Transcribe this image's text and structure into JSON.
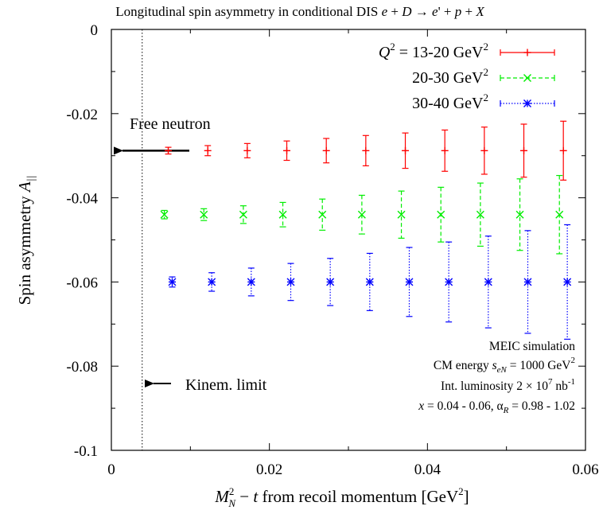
{
  "chart_data": {
    "type": "scatter",
    "title": "Longitudinal spin asymmetry in conditional DIS  e + D → e' + p + X",
    "xlabel": "M²_N − t  from recoil momentum  [GeV²]",
    "ylabel": "Spin asymmetry A_||",
    "xlim": [
      0,
      0.06
    ],
    "ylim": [
      -0.1,
      0
    ],
    "x_ticks": [
      "0",
      "0.02",
      "0.04",
      "0.06"
    ],
    "y_ticks": [
      "0",
      "-0.02",
      "-0.04",
      "-0.06",
      "-0.08",
      "-0.1"
    ],
    "grid": false,
    "legend_position": "top-right",
    "series": [
      {
        "name": "Q² = 13-20 GeV²",
        "color": "#ff0000",
        "marker": "plus",
        "line_style": "solid",
        "x": [
          0.0072,
          0.0122,
          0.0172,
          0.0222,
          0.0272,
          0.0322,
          0.0372,
          0.0422,
          0.0472,
          0.0522,
          0.0572
        ],
        "y": [
          -0.0288,
          -0.0288,
          -0.0288,
          -0.0288,
          -0.0288,
          -0.0288,
          -0.0288,
          -0.0288,
          -0.0288,
          -0.0288,
          -0.0288
        ],
        "yerr": [
          0.0008,
          0.0012,
          0.0017,
          0.0023,
          0.0029,
          0.0036,
          0.0042,
          0.0049,
          0.0056,
          0.0063,
          0.007
        ]
      },
      {
        "name": "20-30 GeV²",
        "color": "#00ee00",
        "marker": "cross",
        "line_style": "dashed",
        "x": [
          0.0067,
          0.0117,
          0.0167,
          0.0217,
          0.0267,
          0.0317,
          0.0367,
          0.0417,
          0.0467,
          0.0517,
          0.0567
        ],
        "y": [
          -0.044,
          -0.044,
          -0.044,
          -0.044,
          -0.044,
          -0.044,
          -0.044,
          -0.044,
          -0.044,
          -0.044,
          -0.044
        ],
        "yerr": [
          0.001,
          0.0014,
          0.0021,
          0.0029,
          0.0037,
          0.0046,
          0.0056,
          0.0065,
          0.0075,
          0.0085,
          0.0093
        ]
      },
      {
        "name": "30-40 GeV²",
        "color": "#0000ff",
        "marker": "star",
        "line_style": "dotted",
        "x": [
          0.0077,
          0.0127,
          0.0177,
          0.0227,
          0.0277,
          0.0327,
          0.0377,
          0.0427,
          0.0477,
          0.0527,
          0.0577
        ],
        "y": [
          -0.06,
          -0.06,
          -0.06,
          -0.06,
          -0.06,
          -0.06,
          -0.06,
          -0.06,
          -0.06,
          -0.06,
          -0.06
        ],
        "yerr": [
          0.0012,
          0.0022,
          0.0033,
          0.0044,
          0.0056,
          0.0068,
          0.0082,
          0.0095,
          0.0109,
          0.0122,
          0.0136
        ]
      }
    ],
    "free_neutron": {
      "label": "Free neutron",
      "y": -0.0288
    },
    "kinematic_limit": {
      "label": "Kinem. limit",
      "x": 0.0039
    },
    "info_lines": [
      "MEIC simulation",
      "CM energy s_eN = 1000 GeV²",
      "Int. luminosity 2 × 10⁷ nb⁻¹",
      "x = 0.04 - 0.06,   α_R = 0.98 - 1.02"
    ]
  }
}
